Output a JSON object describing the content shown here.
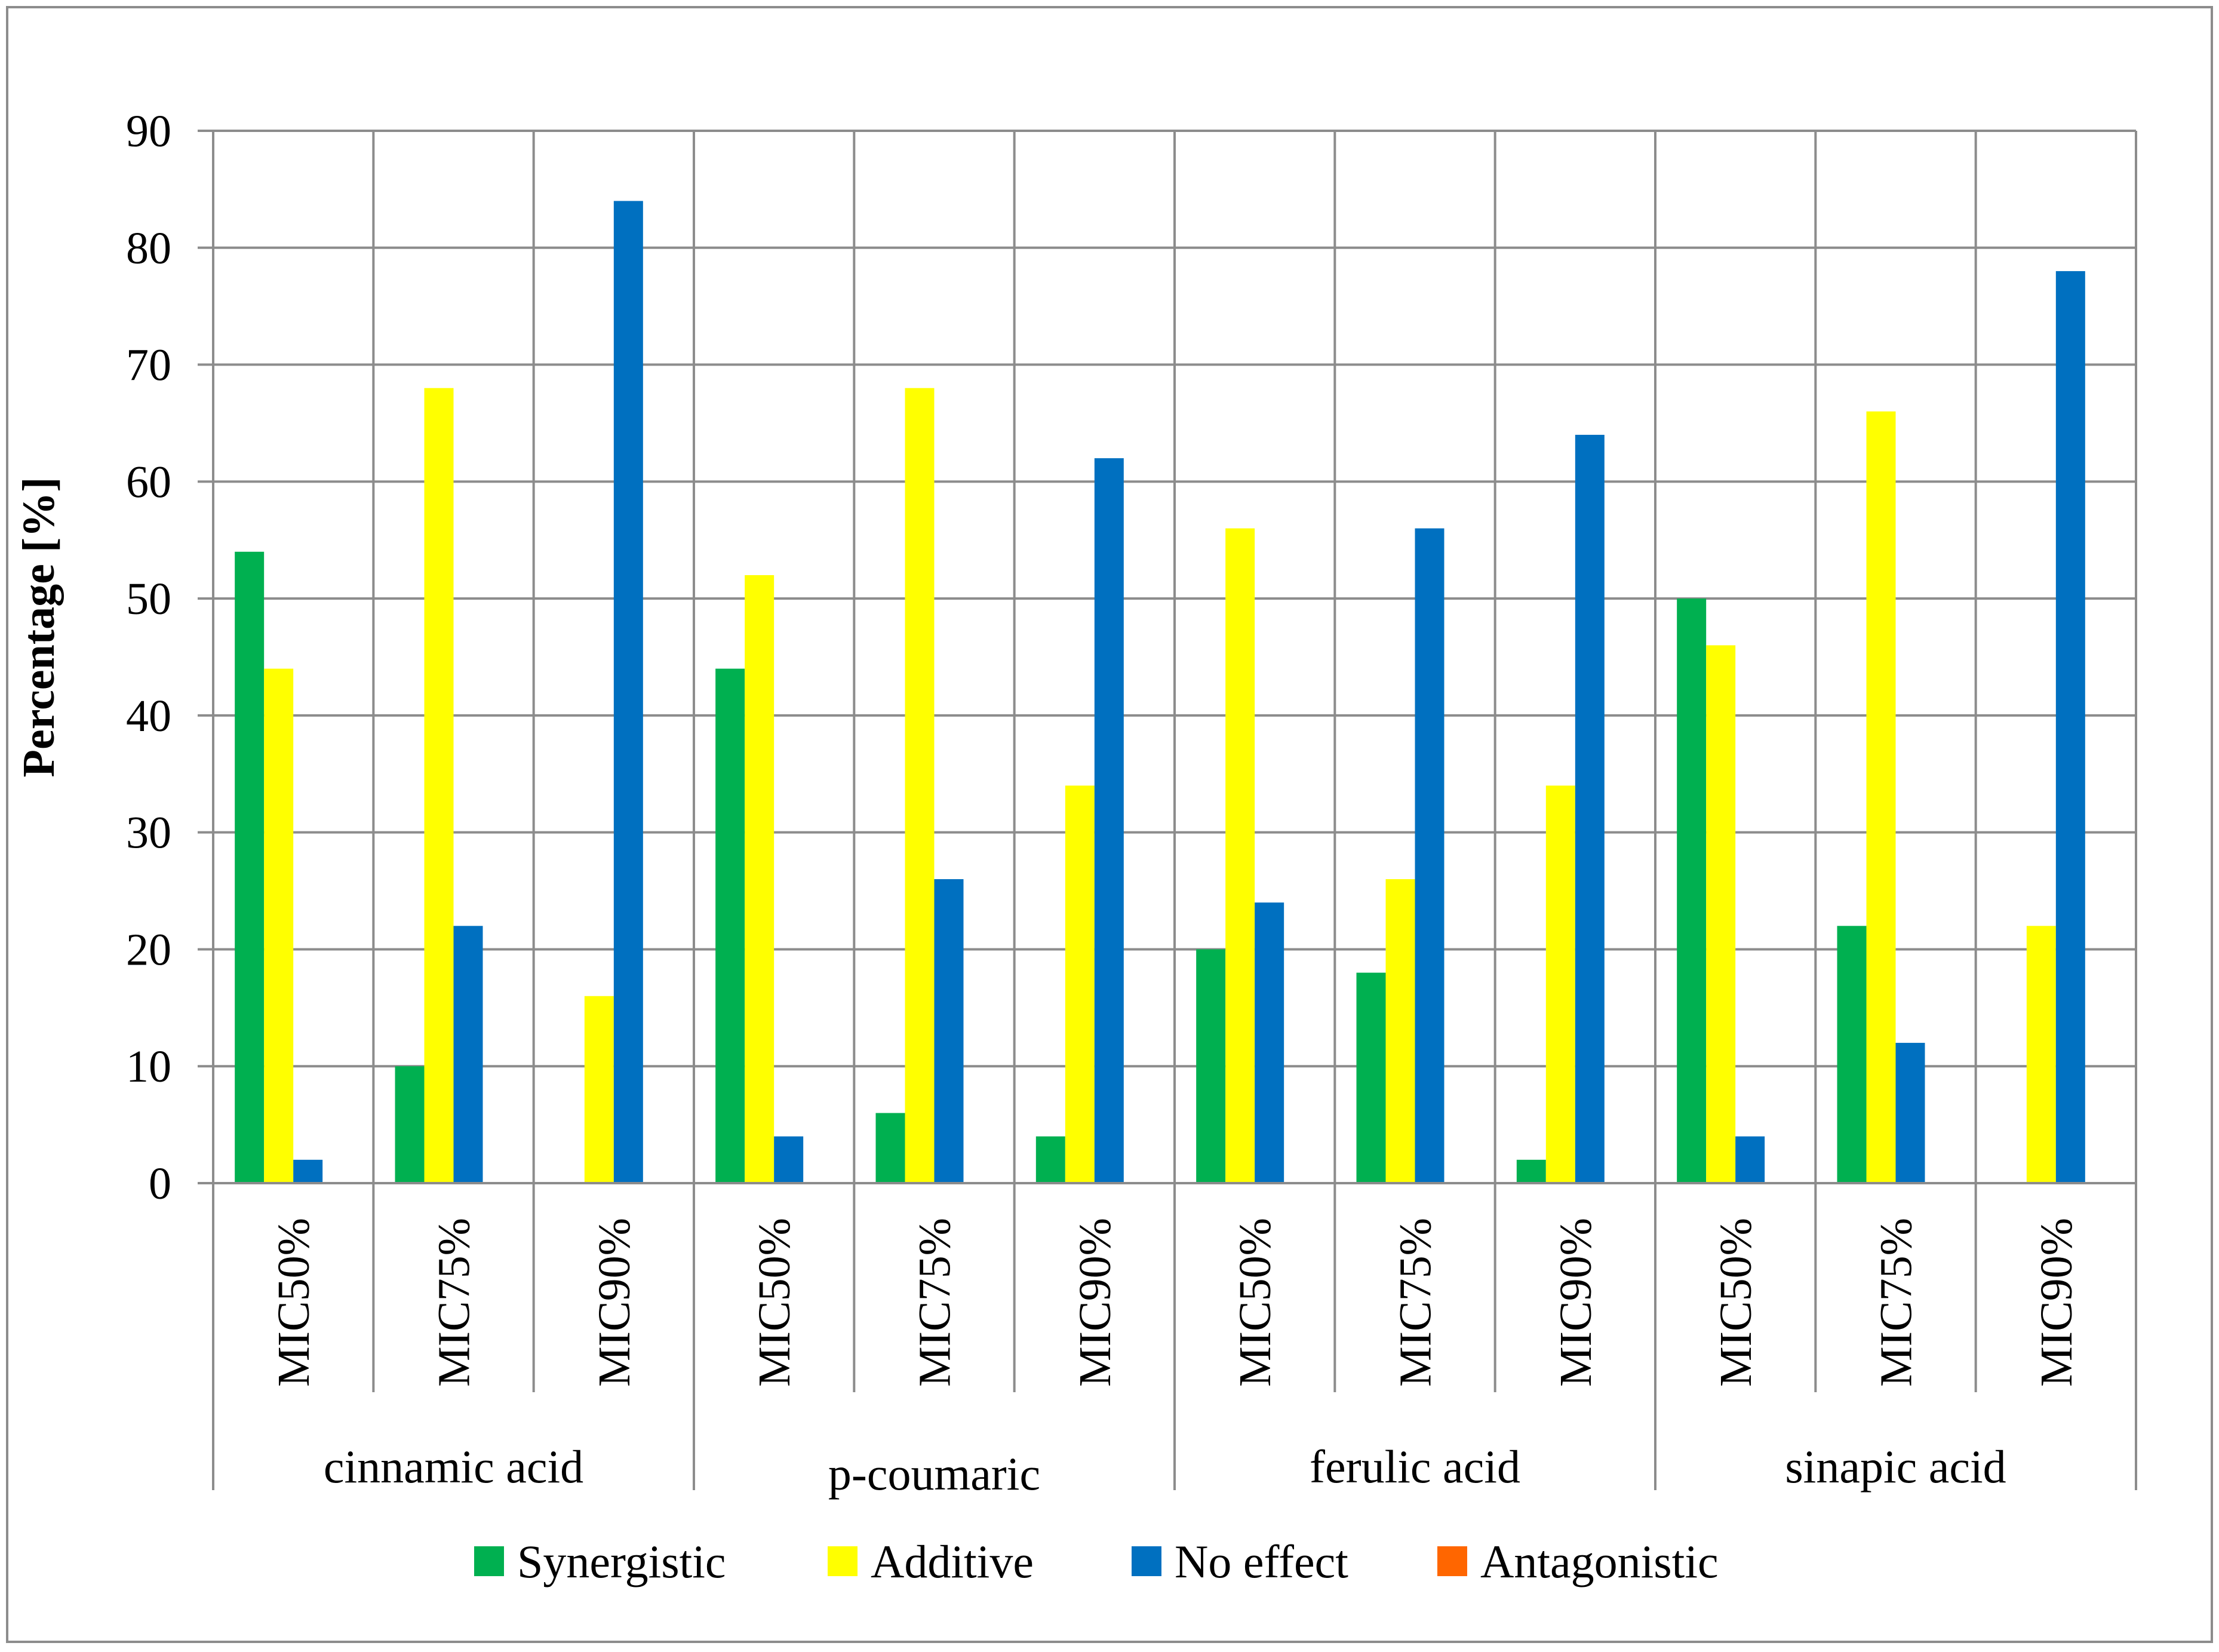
{
  "chart_data": {
    "type": "bar",
    "title": "",
    "xlabel": "",
    "ylabel": "Percentage [%]",
    "ylim": [
      0,
      90
    ],
    "yticks": [
      0,
      10,
      20,
      30,
      40,
      50,
      60,
      70,
      80,
      90
    ],
    "grid": true,
    "legend_position": "bottom",
    "groups": [
      {
        "label": "cinnamic acid",
        "subcategories": [
          "MIC50%",
          "MIC75%",
          "MIC90%"
        ]
      },
      {
        "label": "p-coumaric",
        "subcategories": [
          "MIC50%",
          "MIC75%",
          "MIC90%"
        ]
      },
      {
        "label": "ferulic acid",
        "subcategories": [
          "MIC50%",
          "MIC75%",
          "MIC90%"
        ]
      },
      {
        "label": "sinapic acid",
        "subcategories": [
          "MIC50%",
          "MIC75%",
          "MIC90%"
        ]
      }
    ],
    "series": [
      {
        "name": "Synergistic",
        "color": "#00b050",
        "values": [
          54,
          10,
          0,
          44,
          6,
          4,
          20,
          18,
          2,
          50,
          22,
          0
        ]
      },
      {
        "name": "Additive",
        "color": "#ffff00",
        "values": [
          44,
          68,
          16,
          52,
          68,
          34,
          56,
          26,
          34,
          46,
          66,
          22
        ]
      },
      {
        "name": "No effect",
        "color": "#0070c0",
        "values": [
          2,
          22,
          84,
          4,
          26,
          62,
          24,
          56,
          64,
          4,
          12,
          78
        ]
      },
      {
        "name": "Antagonistic",
        "color": "#ff6600",
        "values": [
          0,
          0,
          0,
          0,
          0,
          0,
          0,
          0,
          0,
          0,
          0,
          0
        ]
      }
    ]
  }
}
